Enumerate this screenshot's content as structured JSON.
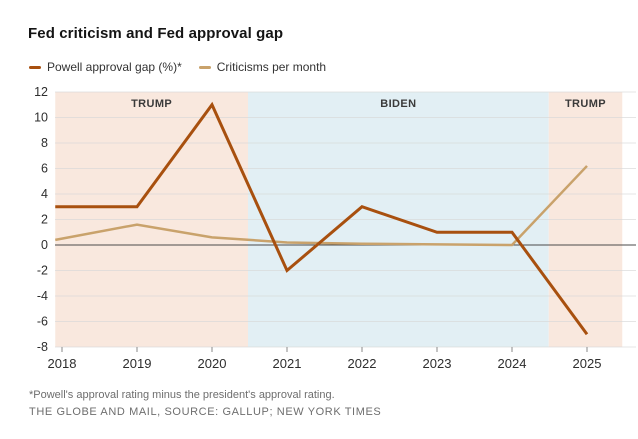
{
  "title": "Fed criticism and Fed approval gap",
  "legend": [
    {
      "label": "Powell approval gap (%)*",
      "color": "#a8500f"
    },
    {
      "label": "Criticisms per month",
      "color": "#c9a26b"
    }
  ],
  "footnote": "*Powell's approval rating minus the president's approval rating.",
  "source": "THE GLOBE AND MAIL, SOURCE: GALLUP; NEW YORK TIMES",
  "chart_data": {
    "type": "line",
    "x": [
      2018,
      2019,
      2020,
      2021,
      2022,
      2023,
      2024,
      2025
    ],
    "series": [
      {
        "name": "Powell approval gap (%)*",
        "color": "#a8500f",
        "width": 3,
        "values": [
          3,
          3,
          11,
          -2,
          3,
          1,
          1,
          -7
        ]
      },
      {
        "name": "Criticisms per month",
        "color": "#c9a26b",
        "width": 2.5,
        "values": [
          0.5,
          1.6,
          0.6,
          0.2,
          0.1,
          0.05,
          0,
          6.2
        ]
      }
    ],
    "x_ticks": [
      "2018",
      "2019",
      "2020",
      "2021",
      "2022",
      "2023",
      "2024",
      "2025"
    ],
    "y_ticks": [
      12,
      10,
      8,
      6,
      4,
      2,
      0,
      -2,
      -4,
      -6,
      -8
    ],
    "ylim": [
      -8,
      12
    ],
    "xlim": [
      2017.91,
      2025.47
    ],
    "grid": true,
    "zero_line": true,
    "legend_position": "top-left",
    "regions": [
      {
        "label": "TRUMP",
        "start": 2017.91,
        "end": 2020.48,
        "color": "#f9e8de"
      },
      {
        "label": "BIDEN",
        "start": 2020.48,
        "end": 2024.49,
        "color": "#e2eff4"
      },
      {
        "label": "TRUMP",
        "start": 2024.49,
        "end": 2025.47,
        "color": "#f9e8de"
      }
    ],
    "colors": {
      "grid": "#d7d7d7",
      "zero_line": "#4a4a4a",
      "axis_text": "#2e2e2e",
      "tick": "#8a8a8a",
      "region_label": "#3a3a3a"
    }
  }
}
